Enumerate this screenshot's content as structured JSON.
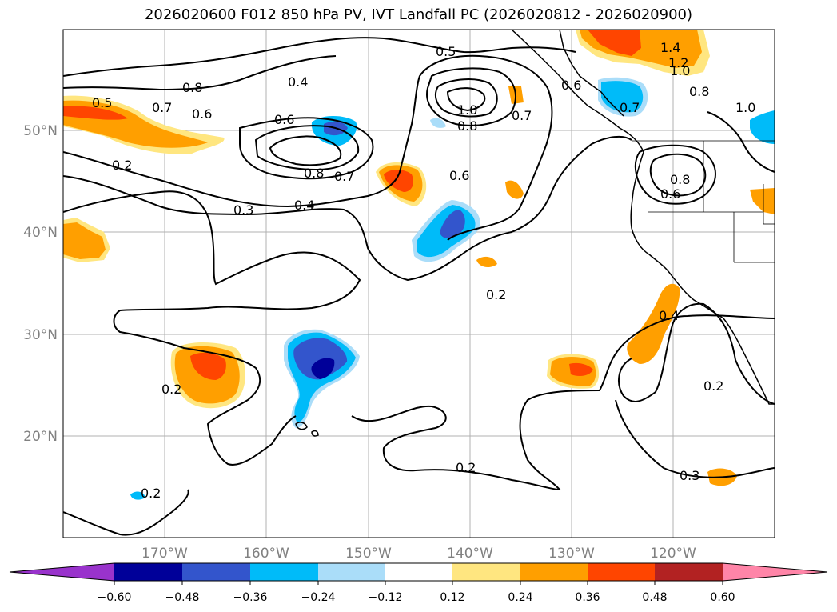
{
  "title": "2026020600 F012 850 hPa PV, IVT Landfall PC (2026020812 - 2026020900)",
  "latitude_labels": [
    "50°N",
    "40°N",
    "30°N",
    "20°N"
  ],
  "longitude_labels": [
    "170°W",
    "160°W",
    "150°W",
    "140°W",
    "130°W",
    "120°W"
  ],
  "contour_labels": [
    "0.5",
    "0.7",
    "0.8",
    "0.6",
    "0.5",
    "0.4",
    "0.6",
    "0.8",
    "0.7",
    "0.3",
    "0.4",
    "1.0",
    "0.8",
    "0.7",
    "0.6",
    "0.2",
    "0.2",
    "0.2",
    "0.2",
    "0.2",
    "0.3",
    "0.4",
    "0.8",
    "0.6",
    "1.4",
    "1.2",
    "1.0",
    "0.8",
    "1.0",
    "0.7",
    "0.6",
    "0.2"
  ],
  "colorbar": {
    "ticks": [
      "−0.60",
      "−0.48",
      "−0.36",
      "−0.24",
      "−0.12",
      "0.12",
      "0.24",
      "0.36",
      "0.48",
      "0.60"
    ],
    "colors": [
      "#9933cc",
      "#000099",
      "#3355cc",
      "#00bbf9",
      "#aaddf9",
      "#ffffff",
      "#ffe680",
      "#ff9f00",
      "#ff4500",
      "#b22222",
      "#ff85a8"
    ]
  }
}
